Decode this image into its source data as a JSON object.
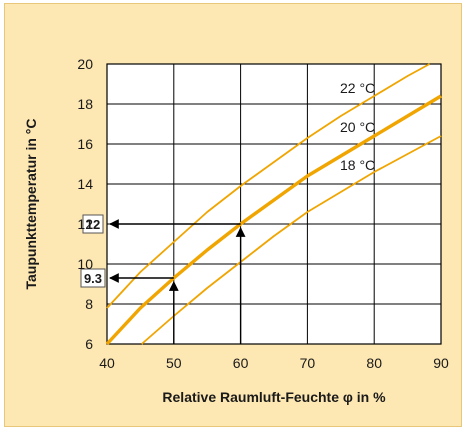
{
  "chart_data": {
    "type": "line",
    "xlabel": "Relative Raumluft-Feuchte φ in %",
    "ylabel": "Taupunkttemperatur  in °C",
    "xlim": [
      40,
      90
    ],
    "ylim": [
      6,
      20
    ],
    "xticks": [
      40,
      50,
      60,
      70,
      80,
      90
    ],
    "yticks": [
      6,
      8,
      10,
      12,
      14,
      16,
      18,
      20
    ],
    "grid": true,
    "series": [
      {
        "name": "22 °C",
        "color": "#f0a500",
        "x": [
          40,
          45,
          50,
          55,
          60,
          65,
          70,
          75,
          80,
          85,
          88.3
        ],
        "y": [
          7.8,
          9.6,
          11.1,
          12.6,
          13.9,
          15.1,
          16.3,
          17.4,
          18.4,
          19.4,
          20.0
        ]
      },
      {
        "name": "20 °C",
        "color": "#f0a500",
        "bold": true,
        "x": [
          40,
          45,
          50,
          55,
          60,
          65,
          70,
          75,
          80,
          85,
          90
        ],
        "y": [
          6.0,
          7.8,
          9.3,
          10.7,
          12.0,
          13.2,
          14.4,
          15.4,
          16.4,
          17.4,
          18.4
        ]
      },
      {
        "name": "18 °C",
        "color": "#f0a500",
        "x": [
          45.2,
          50,
          55,
          60,
          65,
          70,
          75,
          80,
          85,
          90
        ],
        "y": [
          6.0,
          7.4,
          8.8,
          10.1,
          11.4,
          12.6,
          13.6,
          14.6,
          15.5,
          16.4
        ]
      }
    ],
    "annotations": [
      {
        "label": "12",
        "x": 60,
        "y": 12
      },
      {
        "label": "9.3",
        "x": 50,
        "y": 9.3
      }
    ]
  }
}
